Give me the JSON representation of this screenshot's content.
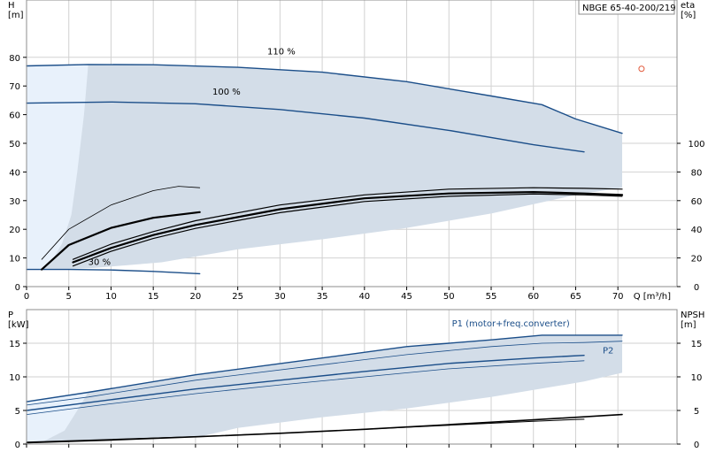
{
  "colors": {
    "band": "#d3dde8",
    "band_light": "#e8f1fb",
    "curve_blue": "#1b4e89",
    "curve_black": "#000000",
    "grid": "#d2d2d2",
    "marker": "#e25a3c",
    "p1_label": "#1b4e89"
  },
  "chart_data": [
    {
      "id": "top",
      "type": "line",
      "model_label": "NBGE 65-40-200/219",
      "x_axis": {
        "label": "Q [m³/h]",
        "range": [
          0,
          77
        ],
        "ticks": [
          0,
          5,
          10,
          15,
          20,
          25,
          30,
          35,
          40,
          45,
          50,
          55,
          60,
          65,
          70
        ]
      },
      "y_left": {
        "label_line1": "H",
        "label_line2": "[m]",
        "range": [
          0,
          100
        ],
        "ticks": [
          0,
          10,
          20,
          30,
          40,
          50,
          60,
          70,
          80
        ]
      },
      "y_right": {
        "label_line1": "eta",
        "label_line2": "[%]",
        "range": [
          0,
          200
        ],
        "ticks": [
          0,
          20,
          40,
          60,
          80,
          100
        ]
      },
      "grid": true,
      "band": {
        "upper": [
          [
            0,
            77
          ],
          [
            5,
            77.2
          ],
          [
            7.3,
            77.5
          ],
          [
            15,
            77.4
          ],
          [
            25,
            76.5
          ],
          [
            35,
            74.8
          ],
          [
            45,
            71.5
          ],
          [
            55,
            66.5
          ],
          [
            61,
            63.5
          ],
          [
            65,
            58.5
          ],
          [
            70.5,
            53.5
          ]
        ],
        "lower": [
          [
            70.5,
            34.5
          ],
          [
            65,
            32
          ],
          [
            55,
            25.5
          ],
          [
            45,
            20.5
          ],
          [
            35,
            16.5
          ],
          [
            25,
            13
          ],
          [
            20,
            10.5
          ],
          [
            16,
            8.5
          ],
          [
            12,
            7.5
          ],
          [
            8,
            6.5
          ],
          [
            4,
            6
          ],
          [
            1.8,
            6
          ],
          [
            0,
            6
          ]
        ]
      },
      "band_light": {
        "points": [
          [
            0,
            77
          ],
          [
            7.3,
            77.5
          ],
          [
            6.8,
            60
          ],
          [
            6,
            40
          ],
          [
            5.3,
            25
          ],
          [
            4.2,
            15
          ],
          [
            3,
            9
          ],
          [
            1.8,
            6
          ],
          [
            0,
            6
          ]
        ]
      },
      "series": [
        {
          "name": "110 %",
          "color": "blue",
          "width": 1.4,
          "points": [
            [
              0,
              77
            ],
            [
              7.3,
              77.5
            ],
            [
              15,
              77.4
            ],
            [
              25,
              76.5
            ],
            [
              35,
              74.8
            ],
            [
              45,
              71.5
            ],
            [
              55,
              66.5
            ],
            [
              61,
              63.5
            ],
            [
              65,
              58.5
            ],
            [
              70.5,
              53.5
            ]
          ]
        },
        {
          "name": "100 %",
          "color": "blue",
          "width": 1.4,
          "points": [
            [
              0,
              64
            ],
            [
              10,
              64.4
            ],
            [
              20,
              63.8
            ],
            [
              30,
              61.8
            ],
            [
              40,
              58.8
            ],
            [
              50,
              54.5
            ],
            [
              60,
              49.5
            ],
            [
              66,
              47
            ]
          ]
        },
        {
          "name": "30 %",
          "color": "blue",
          "width": 1.4,
          "points": [
            [
              0,
              6
            ],
            [
              5,
              6
            ],
            [
              10,
              5.8
            ],
            [
              15,
              5.3
            ],
            [
              20.5,
              4.5
            ]
          ]
        },
        {
          "name": "",
          "color": "black",
          "width": 2.2,
          "points": [
            [
              1.8,
              6
            ],
            [
              5,
              14.5
            ],
            [
              10,
              20.5
            ],
            [
              15,
              24
            ],
            [
              20.5,
              26
            ]
          ]
        },
        {
          "name": "",
          "color": "black",
          "width": 0.8,
          "points": [
            [
              1.8,
              9.5
            ],
            [
              5,
              20
            ],
            [
              10,
              28.5
            ],
            [
              15,
              33.5
            ],
            [
              18,
              35
            ],
            [
              20.5,
              34.5
            ]
          ]
        },
        {
          "name": "",
          "color": "black",
          "width": 2.2,
          "points": [
            [
              5.5,
              8.5
            ],
            [
              10,
              13.5
            ],
            [
              15,
              18
            ],
            [
              20,
              21.5
            ],
            [
              30,
              27
            ],
            [
              40,
              30.8
            ],
            [
              50,
              32.5
            ],
            [
              60,
              33
            ],
            [
              66,
              32.5
            ],
            [
              70.5,
              32
            ]
          ]
        },
        {
          "name": "",
          "color": "black",
          "width": 1.2,
          "points": [
            [
              5.5,
              9.5
            ],
            [
              10,
              14.8
            ],
            [
              15,
              19.2
            ],
            [
              20,
              23
            ],
            [
              30,
              28.5
            ],
            [
              40,
              32
            ],
            [
              50,
              34
            ],
            [
              60,
              34.5
            ],
            [
              66,
              34.3
            ],
            [
              70.5,
              34
            ]
          ]
        },
        {
          "name": "",
          "color": "black",
          "width": 1.2,
          "points": [
            [
              5.5,
              7.2
            ],
            [
              10,
              12.3
            ],
            [
              15,
              16.8
            ],
            [
              20,
              20.3
            ],
            [
              30,
              25.8
            ],
            [
              40,
              29.7
            ],
            [
              50,
              31.5
            ],
            [
              60,
              32.3
            ],
            [
              66,
              32
            ],
            [
              70.5,
              31.5
            ]
          ]
        }
      ],
      "series_labels": [
        {
          "text": "110 %",
          "at": [
            28.5,
            81
          ]
        },
        {
          "text": "100 %",
          "at": [
            22,
            67
          ]
        },
        {
          "text": "30 %",
          "at": [
            7.3,
            7.5
          ]
        }
      ],
      "marker": {
        "x": 72.8,
        "y": 76,
        "type": "circle"
      }
    },
    {
      "id": "bottom",
      "type": "line",
      "x_axis": {
        "label": "",
        "range": [
          0,
          77
        ]
      },
      "y_left": {
        "label_line1": "P",
        "label_line2": "[kW]",
        "range": [
          0,
          20
        ],
        "ticks": [
          0,
          5,
          10,
          15
        ]
      },
      "y_right": {
        "label_line1": "NPSH",
        "label_line2": "[m]",
        "range": [
          0,
          20
        ],
        "ticks": [
          0,
          5,
          10,
          15
        ]
      },
      "grid": true,
      "band": {
        "upper": [
          [
            0,
            6.3
          ],
          [
            7.3,
            7.7
          ],
          [
            20,
            10.3
          ],
          [
            35,
            12.8
          ],
          [
            45,
            14.5
          ],
          [
            55,
            15.5
          ],
          [
            61,
            16.2
          ],
          [
            65,
            16.2
          ],
          [
            70.5,
            16.2
          ]
        ],
        "lower": [
          [
            70.5,
            10.6
          ],
          [
            66,
            9.3
          ],
          [
            55,
            7
          ],
          [
            45,
            5.3
          ],
          [
            35,
            4
          ],
          [
            25,
            2.4
          ],
          [
            20.5,
            1.1
          ],
          [
            16,
            0.8
          ],
          [
            10,
            0.6
          ],
          [
            5,
            0.4
          ],
          [
            0,
            0.3
          ]
        ]
      },
      "band_light": {
        "points": [
          [
            0,
            6.3
          ],
          [
            7.3,
            7.7
          ],
          [
            6,
            5
          ],
          [
            4.5,
            2
          ],
          [
            2,
            0.4
          ],
          [
            0,
            0.3
          ]
        ]
      },
      "series": [
        {
          "name": "P1 (motor+freq.converter)",
          "color": "blue",
          "width": 1.4,
          "points": [
            [
              0,
              6.3
            ],
            [
              7.3,
              7.7
            ],
            [
              20,
              10.3
            ],
            [
              35,
              12.8
            ],
            [
              45,
              14.5
            ],
            [
              55,
              15.5
            ],
            [
              61,
              16.2
            ],
            [
              65,
              16.2
            ],
            [
              70.5,
              16.2
            ]
          ]
        },
        {
          "name": "",
          "color": "blue",
          "width": 0.8,
          "points": [
            [
              0,
              5.8
            ],
            [
              7.3,
              7
            ],
            [
              20,
              9.5
            ],
            [
              35,
              11.8
            ],
            [
              45,
              13.3
            ],
            [
              55,
              14.5
            ],
            [
              61,
              15
            ],
            [
              66,
              15.1
            ],
            [
              70.5,
              15.3
            ]
          ]
        },
        {
          "name": "",
          "color": "blue",
          "width": 1.4,
          "points": [
            [
              0,
              5
            ],
            [
              10,
              6.6
            ],
            [
              20,
              8.2
            ],
            [
              30,
              9.5
            ],
            [
              40,
              10.8
            ],
            [
              50,
              12
            ],
            [
              60,
              12.8
            ],
            [
              66,
              13.2
            ]
          ]
        },
        {
          "name": "P2",
          "color": "blue",
          "width": 0.8,
          "points": [
            [
              0,
              4.4
            ],
            [
              10,
              6
            ],
            [
              20,
              7.5
            ],
            [
              30,
              8.8
            ],
            [
              40,
              10
            ],
            [
              50,
              11.2
            ],
            [
              60,
              12
            ],
            [
              66,
              12.4
            ]
          ]
        },
        {
          "name": "",
          "color": "black",
          "width": 1.6,
          "points": [
            [
              0,
              0.2
            ],
            [
              10,
              0.6
            ],
            [
              20.5,
              1.1
            ],
            [
              30,
              1.6
            ],
            [
              40,
              2.2
            ],
            [
              50,
              2.9
            ],
            [
              60,
              3.6
            ],
            [
              70.5,
              4.4
            ]
          ]
        },
        {
          "name": "",
          "color": "black",
          "width": 1.0,
          "points": [
            [
              0,
              0.3
            ],
            [
              10,
              0.7
            ],
            [
              20,
              1.1
            ],
            [
              30,
              1.6
            ],
            [
              40,
              2.2
            ],
            [
              50,
              2.8
            ],
            [
              60,
              3.4
            ],
            [
              66,
              3.7
            ]
          ]
        }
      ],
      "series_labels": [
        {
          "text": "P1 (motor+freq.converter)",
          "at": [
            64.3,
            17.5
          ],
          "color": "blue"
        },
        {
          "text": "P2",
          "at": [
            69.5,
            13.5
          ],
          "color": "blue"
        }
      ]
    }
  ]
}
